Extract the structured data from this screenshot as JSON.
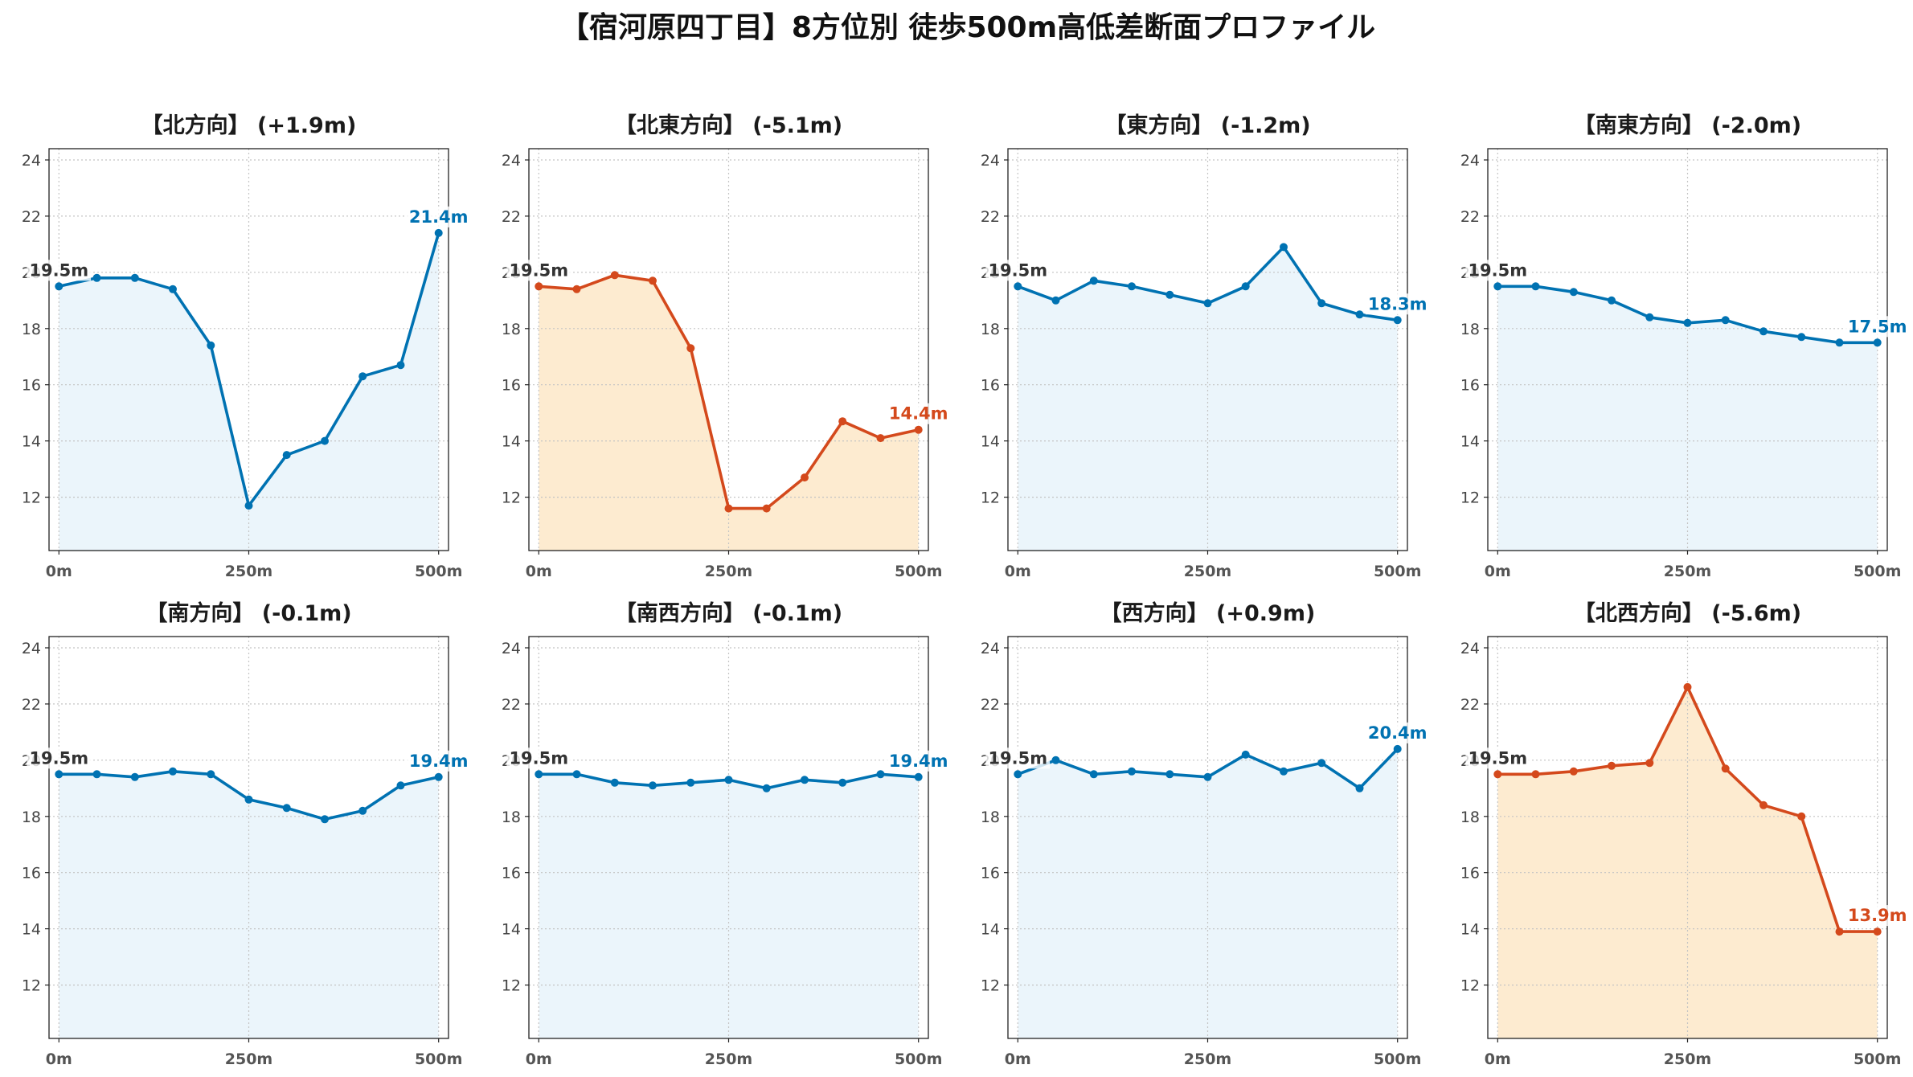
{
  "title": "【宿河原四丁目】8方位別 徒歩500m高低差断面プロファイル",
  "chart_data": [
    {
      "type": "line",
      "title": "【北方向】 (+1.9m)",
      "x": [
        0,
        50,
        100,
        150,
        200,
        250,
        300,
        350,
        400,
        450,
        500
      ],
      "values": [
        19.5,
        19.8,
        19.8,
        19.4,
        17.4,
        11.7,
        13.5,
        14.0,
        16.3,
        16.7,
        21.4
      ],
      "xticks": [
        0,
        250,
        500
      ],
      "xtick_labels": [
        "0m",
        "250m",
        "500m"
      ],
      "yticks": [
        12,
        14,
        16,
        18,
        20,
        22,
        24
      ],
      "xlim": [
        -13,
        513
      ],
      "ylim": [
        10.1,
        24.4
      ],
      "grid": true,
      "line_color": "#0072B2",
      "fill_color": "#EBF5FB",
      "start_label": "19.5m",
      "end_label": "21.4m"
    },
    {
      "type": "line",
      "title": "【北東方向】 (-5.1m)",
      "x": [
        0,
        50,
        100,
        150,
        200,
        250,
        300,
        350,
        400,
        450,
        500
      ],
      "values": [
        19.5,
        19.4,
        19.9,
        19.7,
        17.3,
        11.6,
        11.6,
        12.7,
        14.7,
        14.1,
        14.4
      ],
      "xticks": [
        0,
        250,
        500
      ],
      "xtick_labels": [
        "0m",
        "250m",
        "500m"
      ],
      "yticks": [
        12,
        14,
        16,
        18,
        20,
        22,
        24
      ],
      "xlim": [
        -13,
        513
      ],
      "ylim": [
        10.1,
        24.4
      ],
      "grid": true,
      "line_color": "#D4491C",
      "fill_color": "#FDEBD0",
      "start_label": "19.5m",
      "end_label": "14.4m"
    },
    {
      "type": "line",
      "title": "【東方向】 (-1.2m)",
      "x": [
        0,
        50,
        100,
        150,
        200,
        250,
        300,
        350,
        400,
        450,
        500
      ],
      "values": [
        19.5,
        19.0,
        19.7,
        19.5,
        19.2,
        18.9,
        19.5,
        20.9,
        18.9,
        18.5,
        18.3
      ],
      "xticks": [
        0,
        250,
        500
      ],
      "xtick_labels": [
        "0m",
        "250m",
        "500m"
      ],
      "yticks": [
        12,
        14,
        16,
        18,
        20,
        22,
        24
      ],
      "xlim": [
        -13,
        513
      ],
      "ylim": [
        10.1,
        24.4
      ],
      "grid": true,
      "line_color": "#0072B2",
      "fill_color": "#EBF5FB",
      "start_label": "19.5m",
      "end_label": "18.3m"
    },
    {
      "type": "line",
      "title": "【南東方向】 (-2.0m)",
      "x": [
        0,
        50,
        100,
        150,
        200,
        250,
        300,
        350,
        400,
        450,
        500
      ],
      "values": [
        19.5,
        19.5,
        19.3,
        19.0,
        18.4,
        18.2,
        18.3,
        17.9,
        17.7,
        17.5,
        17.5
      ],
      "xticks": [
        0,
        250,
        500
      ],
      "xtick_labels": [
        "0m",
        "250m",
        "500m"
      ],
      "yticks": [
        12,
        14,
        16,
        18,
        20,
        22,
        24
      ],
      "xlim": [
        -13,
        513
      ],
      "ylim": [
        10.1,
        24.4
      ],
      "grid": true,
      "line_color": "#0072B2",
      "fill_color": "#EBF5FB",
      "start_label": "19.5m",
      "end_label": "17.5m"
    },
    {
      "type": "line",
      "title": "【南方向】 (-0.1m)",
      "x": [
        0,
        50,
        100,
        150,
        200,
        250,
        300,
        350,
        400,
        450,
        500
      ],
      "values": [
        19.5,
        19.5,
        19.4,
        19.6,
        19.5,
        18.6,
        18.3,
        17.9,
        18.2,
        19.1,
        19.4
      ],
      "xticks": [
        0,
        250,
        500
      ],
      "xtick_labels": [
        "0m",
        "250m",
        "500m"
      ],
      "yticks": [
        12,
        14,
        16,
        18,
        20,
        22,
        24
      ],
      "xlim": [
        -13,
        513
      ],
      "ylim": [
        10.1,
        24.4
      ],
      "grid": true,
      "line_color": "#0072B2",
      "fill_color": "#EBF5FB",
      "start_label": "19.5m",
      "end_label": "19.4m"
    },
    {
      "type": "line",
      "title": "【南西方向】 (-0.1m)",
      "x": [
        0,
        50,
        100,
        150,
        200,
        250,
        300,
        350,
        400,
        450,
        500
      ],
      "values": [
        19.5,
        19.5,
        19.2,
        19.1,
        19.2,
        19.3,
        19.0,
        19.3,
        19.2,
        19.5,
        19.4
      ],
      "xticks": [
        0,
        250,
        500
      ],
      "xtick_labels": [
        "0m",
        "250m",
        "500m"
      ],
      "yticks": [
        12,
        14,
        16,
        18,
        20,
        22,
        24
      ],
      "xlim": [
        -13,
        513
      ],
      "ylim": [
        10.1,
        24.4
      ],
      "grid": true,
      "line_color": "#0072B2",
      "fill_color": "#EBF5FB",
      "start_label": "19.5m",
      "end_label": "19.4m"
    },
    {
      "type": "line",
      "title": "【西方向】 (+0.9m)",
      "x": [
        0,
        50,
        100,
        150,
        200,
        250,
        300,
        350,
        400,
        450,
        500
      ],
      "values": [
        19.5,
        20.0,
        19.5,
        19.6,
        19.5,
        19.4,
        20.2,
        19.6,
        19.9,
        19.0,
        20.4
      ],
      "xticks": [
        0,
        250,
        500
      ],
      "xtick_labels": [
        "0m",
        "250m",
        "500m"
      ],
      "yticks": [
        12,
        14,
        16,
        18,
        20,
        22,
        24
      ],
      "xlim": [
        -13,
        513
      ],
      "ylim": [
        10.1,
        24.4
      ],
      "grid": true,
      "line_color": "#0072B2",
      "fill_color": "#EBF5FB",
      "start_label": "19.5m",
      "end_label": "20.4m"
    },
    {
      "type": "line",
      "title": "【北西方向】 (-5.6m)",
      "x": [
        0,
        50,
        100,
        150,
        200,
        250,
        300,
        350,
        400,
        450,
        500
      ],
      "values": [
        19.5,
        19.5,
        19.6,
        19.8,
        19.9,
        22.6,
        19.7,
        18.4,
        18.0,
        13.9,
        13.9
      ],
      "xticks": [
        0,
        250,
        500
      ],
      "xtick_labels": [
        "0m",
        "250m",
        "500m"
      ],
      "yticks": [
        12,
        14,
        16,
        18,
        20,
        22,
        24
      ],
      "xlim": [
        -13,
        513
      ],
      "ylim": [
        10.1,
        24.4
      ],
      "grid": true,
      "line_color": "#D4491C",
      "fill_color": "#FDEBD0",
      "start_label": "19.5m",
      "end_label": "13.9m"
    }
  ]
}
